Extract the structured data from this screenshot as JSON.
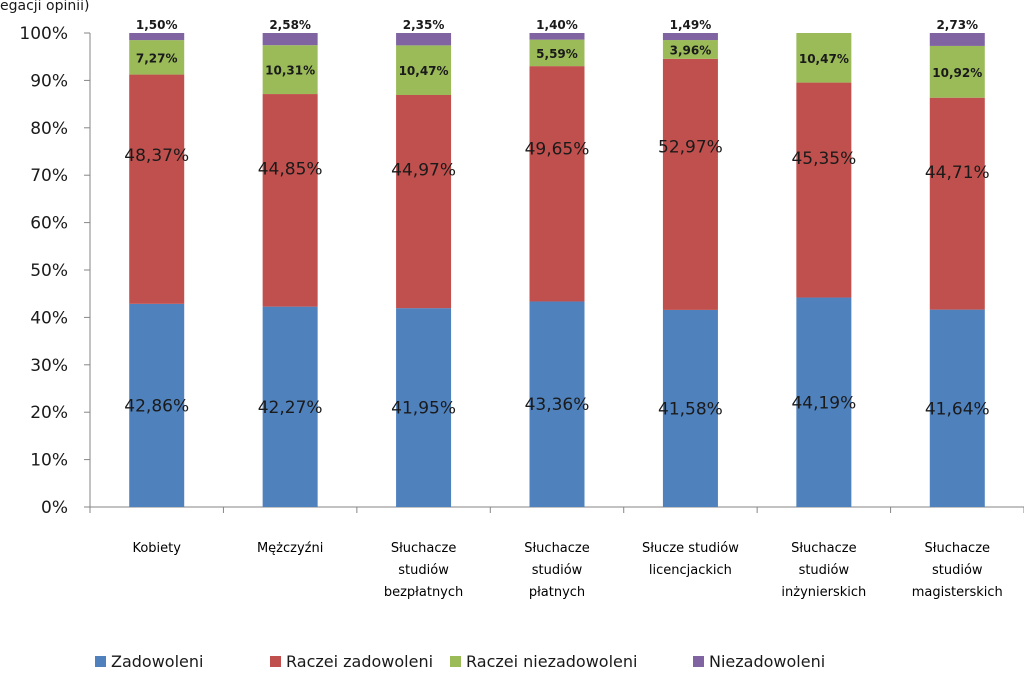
{
  "header_fragment": "egacji opinii)",
  "chart_data": {
    "type": "bar",
    "stacked": true,
    "categories": [
      [
        "Kobiety"
      ],
      [
        "Mężczyźni"
      ],
      [
        "Słuchacze",
        "studiów",
        "bezpłatnych"
      ],
      [
        "Słuchacze",
        "studiów",
        "płatnych"
      ],
      [
        "Słucze studiów",
        "licencjackich"
      ],
      [
        "Słuchacze",
        "studiów",
        "inżynierskich"
      ],
      [
        "Słuchacze",
        "studiów",
        "magisterskich"
      ]
    ],
    "series": [
      {
        "name": "Zadowoleni",
        "color": "#4F81BD",
        "values": [
          42.86,
          42.27,
          41.95,
          43.36,
          41.58,
          44.19,
          41.64
        ],
        "labels": [
          "42,86%",
          "42,27%",
          "41,95%",
          "43,36%",
          "41,58%",
          "44,19%",
          "41,64%"
        ]
      },
      {
        "name": "Raczei zadowoleni",
        "color": "#C0504D",
        "values": [
          48.37,
          44.85,
          44.97,
          49.65,
          52.97,
          45.35,
          44.71
        ],
        "labels": [
          "48,37%",
          "44,85%",
          "44,97%",
          "49,65%",
          "52,97%",
          "45,35%",
          "44,71%"
        ]
      },
      {
        "name": "Raczei niezadowoleni",
        "color": "#9BBB59",
        "values": [
          7.27,
          10.31,
          10.47,
          5.59,
          3.96,
          10.47,
          10.92
        ],
        "labels": [
          "7,27%",
          "10,31%",
          "10,47%",
          "5,59%",
          "3,96%",
          "10,47%",
          "10,92%"
        ]
      },
      {
        "name": "Niezadowoleni",
        "color": "#8064A2",
        "values": [
          1.5,
          2.58,
          2.35,
          1.4,
          1.49,
          0,
          2.73
        ],
        "labels": [
          "1,50%",
          "2,58%",
          "2,35%",
          "1,40%",
          "1,49%",
          "",
          "2,73%"
        ]
      }
    ],
    "yticks": [
      "0%",
      "10%",
      "20%",
      "30%",
      "40%",
      "50%",
      "60%",
      "70%",
      "80%",
      "90%",
      "100%"
    ],
    "ylim": [
      0,
      100
    ],
    "legend_position": "bottom",
    "grid": false
  }
}
